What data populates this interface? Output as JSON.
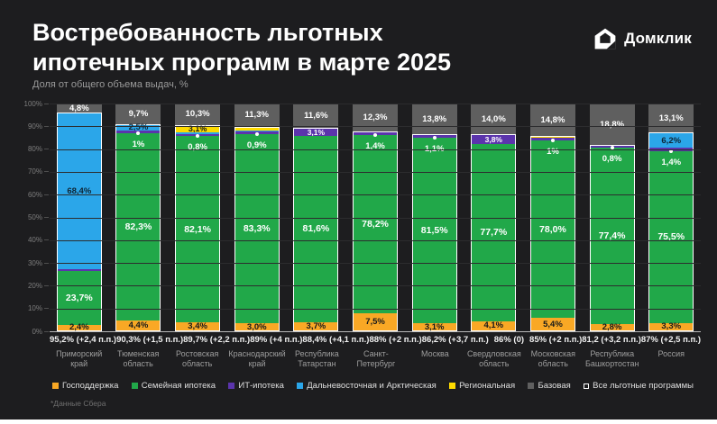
{
  "header": {
    "title_line1": "Востребованность льготных",
    "title_line2": "ипотечных программ в марте 2025",
    "subtitle": "Доля от общего объема выдач, %",
    "brand": "Домклик"
  },
  "footnote": "*Данные Сбера",
  "colors": {
    "background": "#1D1D1F",
    "gospodderzhka": "#F9A825",
    "semeynaya": "#21A849",
    "it_ipoteka": "#5B34AC",
    "dalnevostochnaya": "#2BA6E9",
    "regionalnaya": "#FFDB00",
    "bazovaya": "#5F5F5F",
    "vse_lgotnye_outline": "#FFFFFF"
  },
  "chart_data": {
    "type": "bar",
    "subtype": "stacked-100%",
    "unit": "%",
    "ylim": [
      0,
      100
    ],
    "yticks": [
      "0%",
      "10%",
      "20%",
      "30%",
      "40%",
      "50%",
      "60%",
      "70%",
      "80%",
      "90%",
      "100%"
    ],
    "grid": true,
    "legend_position": "bottom",
    "legend": [
      {
        "key": "gos",
        "label": "Господдержка",
        "color": "#F9A825"
      },
      {
        "key": "family",
        "label": "Семейная ипотека",
        "color": "#21A849"
      },
      {
        "key": "it",
        "label": "ИТ-ипотека",
        "color": "#5B34AC"
      },
      {
        "key": "dv",
        "label": "Дальневосточная и Арктическая",
        "color": "#2BA6E9"
      },
      {
        "key": "reg",
        "label": "Региональная",
        "color": "#FFDB00"
      },
      {
        "key": "base",
        "label": "Базовая",
        "color": "#5F5F5F"
      },
      {
        "key": "all",
        "label": "Все льготные программы",
        "color": "#FFFFFF",
        "hollow": true
      }
    ],
    "bars": [
      {
        "region": "Приморский край",
        "total_label": "95,2% (+2,4 п.п.)",
        "base_label": "4,8%",
        "callout": null,
        "segments": [
          {
            "key": "gos",
            "value": 2.4,
            "label": "2,4%"
          },
          {
            "key": "family",
            "value": 23.7,
            "label": "23,7%"
          },
          {
            "key": "it",
            "value": 0.7,
            "label": ""
          },
          {
            "key": "dv",
            "value": 68.4,
            "label": "68,4%"
          }
        ]
      },
      {
        "region": "Тюменская область",
        "total_label": "90,3% (+1,5 п.п.)",
        "base_label": "9,7%",
        "callout": "1%",
        "segments": [
          {
            "key": "gos",
            "value": 4.4,
            "label": "4,4%"
          },
          {
            "key": "family",
            "value": 82.3,
            "label": "82,3%"
          },
          {
            "key": "it",
            "value": 1.0,
            "label": ""
          },
          {
            "key": "dv",
            "value": 2.5,
            "label": "2,5%"
          }
        ]
      },
      {
        "region": "Ростовская область",
        "total_label": "89,7% (+2,2 п.п.)",
        "base_label": "10,3%",
        "callout": "0,8%",
        "segments": [
          {
            "key": "gos",
            "value": 3.4,
            "label": "3,4%"
          },
          {
            "key": "family",
            "value": 82.1,
            "label": "82,1%"
          },
          {
            "key": "it",
            "value": 0.8,
            "label": ""
          },
          {
            "key": "dv",
            "value": 0.5,
            "label": ""
          },
          {
            "key": "reg",
            "value": 3.1,
            "label": "3,1%"
          }
        ]
      },
      {
        "region": "Краснодарский край",
        "total_label": "89% (+4 п.п.)",
        "base_label": "11,3%",
        "callout": "0,9%",
        "segments": [
          {
            "key": "gos",
            "value": 3.0,
            "label": "3,0%"
          },
          {
            "key": "family",
            "value": 83.3,
            "label": "83,3%"
          },
          {
            "key": "it",
            "value": 0.9,
            "label": ""
          },
          {
            "key": "dv",
            "value": 0.5,
            "label": ""
          },
          {
            "key": "reg",
            "value": 1.3,
            "label": ""
          }
        ]
      },
      {
        "region": "Республика Татарстан",
        "total_label": "88,4% (+4,1 п.п.)",
        "base_label": "11,6%",
        "callout": null,
        "segments": [
          {
            "key": "gos",
            "value": 3.7,
            "label": "3,7%"
          },
          {
            "key": "family",
            "value": 81.6,
            "label": "81,6%"
          },
          {
            "key": "it",
            "value": 3.1,
            "label": "3,1%"
          }
        ]
      },
      {
        "region": "Санкт-Петербург",
        "total_label": "88% (+2 п.п.)",
        "base_label": "12,3%",
        "callout": "1,4%",
        "segments": [
          {
            "key": "gos",
            "value": 7.5,
            "label": "7,5%"
          },
          {
            "key": "family",
            "value": 78.2,
            "label": "78,2%"
          },
          {
            "key": "it",
            "value": 1.4,
            "label": ""
          }
        ]
      },
      {
        "region": "Москва",
        "total_label": "86,2% (+3,7 п.п.)",
        "base_label": "13,8%",
        "callout": "1,1%",
        "segments": [
          {
            "key": "gos",
            "value": 3.1,
            "label": "3,1%"
          },
          {
            "key": "family",
            "value": 81.5,
            "label": "81,5%"
          },
          {
            "key": "it",
            "value": 1.1,
            "label": ""
          }
        ]
      },
      {
        "region": "Свердловская область",
        "total_label": "86% (0)",
        "base_label": "14,0%",
        "callout": null,
        "segments": [
          {
            "key": "gos",
            "value": 4.1,
            "label": "4,1%"
          },
          {
            "key": "family",
            "value": 77.7,
            "label": "77,7%"
          },
          {
            "key": "it",
            "value": 3.8,
            "label": "3,8%"
          }
        ]
      },
      {
        "region": "Московская область",
        "total_label": "85% (+2 п.п.)",
        "base_label": "14,8%",
        "callout": "1%",
        "segments": [
          {
            "key": "gos",
            "value": 5.4,
            "label": "5,4%"
          },
          {
            "key": "family",
            "value": 78.0,
            "label": "78,0%"
          },
          {
            "key": "it",
            "value": 1.0,
            "label": ""
          },
          {
            "key": "reg",
            "value": 0.4,
            "label": ""
          }
        ]
      },
      {
        "region": "Республика Башкортостан",
        "total_label": "81,2 (+3,2 п.п.)",
        "base_label": "18,8%",
        "callout": "0,8%",
        "segments": [
          {
            "key": "gos",
            "value": 2.8,
            "label": "2,8%"
          },
          {
            "key": "family",
            "value": 77.4,
            "label": "77,4%"
          },
          {
            "key": "it",
            "value": 0.8,
            "label": ""
          }
        ]
      },
      {
        "region": "Россия",
        "total_label": "87% (+2,5 п.п.)",
        "base_label": "13,1%",
        "callout": "1,4%",
        "segments": [
          {
            "key": "gos",
            "value": 3.3,
            "label": "3,3%"
          },
          {
            "key": "family",
            "value": 75.5,
            "label": "75,5%"
          },
          {
            "key": "it",
            "value": 1.4,
            "label": ""
          },
          {
            "key": "dv",
            "value": 6.2,
            "label": "6,2%"
          }
        ]
      }
    ]
  }
}
